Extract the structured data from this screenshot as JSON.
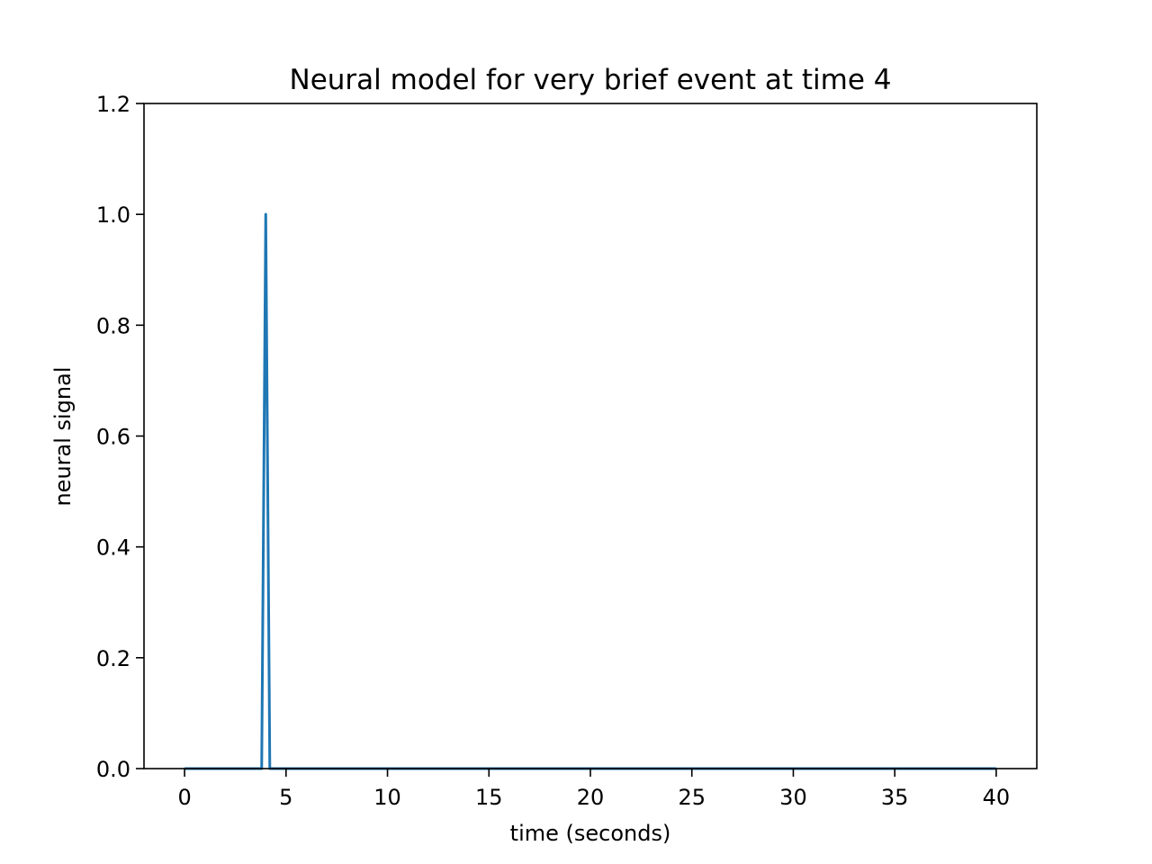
{
  "chart_data": {
    "type": "line",
    "title": "Neural model for very brief event at time 4",
    "xlabel": "time (seconds)",
    "ylabel": "neural signal",
    "xlim": [
      -2,
      42
    ],
    "ylim": [
      0,
      1.2
    ],
    "xticks": [
      0,
      5,
      10,
      15,
      20,
      25,
      30,
      35,
      40
    ],
    "xtick_labels": [
      "0",
      "5",
      "10",
      "15",
      "20",
      "25",
      "30",
      "35",
      "40"
    ],
    "yticks": [
      0,
      0.2,
      0.4,
      0.6,
      0.8,
      1.0,
      1.2
    ],
    "ytick_labels": [
      "0.0",
      "0.2",
      "0.4",
      "0.6",
      "0.8",
      "1.0",
      "1.2"
    ],
    "grid": false,
    "series": [
      {
        "color": "#1f77b4",
        "x": [
          0,
          3.8,
          4.0,
          4.2,
          40
        ],
        "y": [
          0,
          0,
          1.0,
          0,
          0
        ]
      }
    ]
  }
}
